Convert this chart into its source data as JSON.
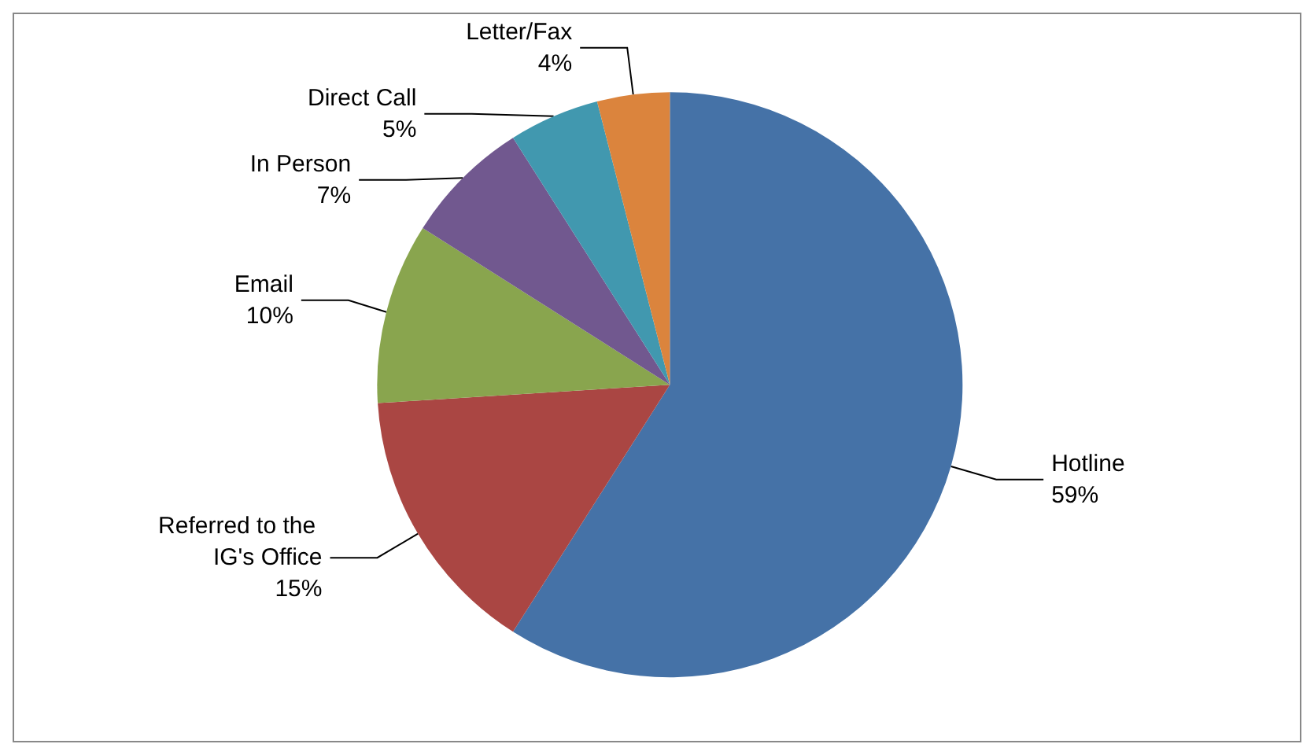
{
  "chart_data": {
    "type": "pie",
    "categories": [
      "Hotline",
      "Referred to the IG's Office",
      "Email",
      "In Person",
      "Direct Call",
      "Letter/Fax"
    ],
    "values": [
      59,
      15,
      10,
      7,
      5,
      4
    ],
    "colors": [
      "#4572a7",
      "#aa4643",
      "#89a54e",
      "#71588f",
      "#4198af",
      "#db843d"
    ],
    "value_labels": [
      "59%",
      "15%",
      "10%",
      "7%",
      "5%",
      "4%"
    ]
  }
}
